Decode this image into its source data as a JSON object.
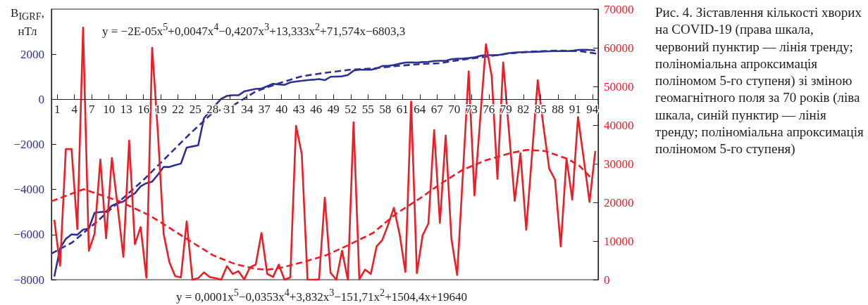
{
  "chart_data": {
    "type": "line",
    "title": "Рис. 4. Зіставлення кількості хворих на COVID-19 (права шкала, червоний пунктир — лінія тренду; поліноміальна апроксимація поліномом 5-го ступеня) зі зміною геомагнітного поля за 70 років (ліва шкала, синій пунктир — лінія тренду; поліноміальна апроксимація поліномом 5-го ступеня)",
    "ylabel": "B$_{IGRF}$, нТл",
    "annotations": [
      "y = −2E-05x$^{5}$+0,0047x$^{4}$−0,4207x$^{3}$+13,333x$^{2}$+71,574x−6803,3",
      "y = 0,0001x$^{5}$−0,0353x$^{4}$+3,832x$^{3}$−151,71x$^{2}$+1504,4x+19640"
    ],
    "x": [
      0.5,
      1.5,
      2.5,
      3.5,
      4.5,
      5.5,
      6.5,
      7.5,
      8.5,
      9.5,
      10.5,
      11.5,
      12.5,
      13.5,
      14.5,
      15.5,
      16.5,
      17.5,
      18.5,
      19.5,
      20.5,
      21.5,
      22.5,
      23.5,
      24.5,
      25.5,
      26.5,
      27.5,
      28.5,
      29.5,
      30.5,
      31.5,
      32.5,
      33.5,
      34.5,
      35.5,
      36.5,
      37.5,
      38.5,
      39.5,
      40.5,
      41.5,
      42.5,
      43.5,
      44.5,
      45.5,
      46.5,
      47.5,
      48.5,
      49.5,
      50.5,
      51.5,
      52.5,
      53.5,
      54.5,
      55.5,
      56.5,
      57.5,
      58.5,
      59.5,
      60.5,
      61.5,
      62.5,
      63.5,
      64.5,
      65.5,
      66.5,
      67.5,
      68.5,
      69.5,
      70.5,
      71.5,
      72.5,
      73.5,
      74.5,
      75.5,
      76.5,
      77.5,
      78.5,
      79.5,
      80.5,
      81.5,
      82.5,
      83.5,
      84.5,
      85.5,
      86.5,
      87.5,
      88.5,
      89.5,
      90.5,
      91.5,
      92.5,
      93.5,
      94.5
    ],
    "xlim": [
      0,
      95
    ],
    "xticks": [
      1,
      4,
      7,
      10,
      13,
      16,
      19,
      22,
      25,
      28,
      31,
      34,
      37,
      40,
      43,
      46,
      49,
      52,
      55,
      58,
      61,
      64,
      67,
      70,
      73,
      76,
      79,
      82,
      85,
      88,
      91,
      94
    ],
    "ylim": [
      -8000,
      4000
    ],
    "yticks": [
      {
        "value": -8000,
        "label": "−8000"
      },
      {
        "value": -6000,
        "label": "−6000"
      },
      {
        "value": -4000,
        "label": "−4000"
      },
      {
        "value": -2000,
        "label": "−2000"
      },
      0,
      2000
    ],
    "y2lim": [
      0,
      70000
    ],
    "y2ticks": [
      0,
      10000,
      20000,
      30000,
      40000,
      50000,
      60000,
      70000
    ],
    "marker": "none",
    "grid": false,
    "series": [
      {
        "color": "#2e3192",
        "line_style": "solid",
        "values": [
          -7860,
          -6610,
          -6190,
          -5990,
          -6010,
          -5780,
          -5730,
          -5030,
          -5000,
          -4980,
          -4720,
          -4610,
          -4530,
          -4320,
          -4170,
          -3860,
          -3720,
          -3650,
          -3340,
          -3000,
          -3000,
          -2920,
          -2850,
          -2140,
          -2090,
          -2040,
          -840,
          -530,
          -250,
          20,
          150,
          180,
          180,
          350,
          410,
          460,
          480,
          580,
          690,
          660,
          640,
          750,
          790,
          820,
          850,
          870,
          900,
          850,
          1000,
          1010,
          1020,
          1080,
          1270,
          1310,
          1310,
          1310,
          1370,
          1480,
          1480,
          1520,
          1580,
          1630,
          1640,
          1630,
          1650,
          1660,
          1700,
          1710,
          1710,
          1780,
          1800,
          1810,
          1830,
          1860,
          1930,
          1960,
          1960,
          1960,
          2000,
          2050,
          2070,
          2090,
          2100,
          2100,
          2110,
          2120,
          2130,
          2140,
          2140,
          2140,
          2150,
          2190,
          2200,
          2190,
          2170
        ]
      },
      {
        "color": "#2e3192",
        "line_style": "dashed",
        "x": [
          0,
          3.6,
          7.7,
          11.8,
          15.9,
          20,
          24.1,
          28.1,
          31.4,
          35.5,
          39.6,
          43.6,
          47.7,
          51.8,
          55.9,
          60,
          64.5,
          67.3,
          71.4,
          75.5,
          79.6,
          83.6,
          87.7,
          91.8,
          94.9
        ],
        "values": [
          -6840,
          -6350,
          -5470,
          -4530,
          -3600,
          -2560,
          -1520,
          -580,
          -300,
          350,
          720,
          1030,
          1180,
          1310,
          1370,
          1480,
          1570,
          1600,
          1760,
          1890,
          2040,
          2120,
          2160,
          2140,
          2020
        ]
      },
      {
        "color": "#ee1c25",
        "line_style": "solid",
        "axis": "y2",
        "values": [
          15500,
          3600,
          33800,
          33800,
          13100,
          65200,
          7500,
          11900,
          31100,
          10700,
          31500,
          19000,
          5900,
          36000,
          9200,
          13600,
          500,
          60000,
          38000,
          11800,
          4500,
          900,
          600,
          15100,
          0,
          400,
          1900,
          700,
          400,
          0,
          3500,
          1500,
          2200,
          100,
          3200,
          3900,
          12100,
          1500,
          700,
          3900,
          0,
          600,
          39800,
          32500,
          0,
          0,
          100,
          21200,
          1800,
          0,
          7500,
          0,
          40700,
          100,
          2600,
          1500,
          8600,
          10300,
          14200,
          18600,
          11800,
          2000,
          46100,
          1700,
          11500,
          14500,
          38700,
          14700,
          37300,
          10600,
          1200,
          27500,
          53900,
          21800,
          41500,
          60900,
          52700,
          26100,
          56200,
          38400,
          20400,
          32700,
          12900,
          32300,
          51600,
          39600,
          28700,
          25900,
          8600,
          31300,
          20700,
          42100,
          31200,
          20100,
          33300
        ]
      },
      {
        "color": "#ee1c25",
        "line_style": "dashed",
        "axis": "y2",
        "x": [
          0,
          5.6,
          11.8,
          17.1,
          20,
          24.1,
          28.1,
          32,
          35.5,
          37.5,
          39.6,
          43.6,
          47.7,
          51.8,
          55.9,
          60,
          64,
          67.3,
          71.4,
          75.5,
          79.6,
          82.6,
          85.7,
          89.8,
          91.8,
          93.9
        ],
        "values": [
          20300,
          23400,
          20300,
          16600,
          13900,
          10000,
          6300,
          4000,
          2800,
          2600,
          3000,
          4500,
          6300,
          9100,
          12100,
          17200,
          21000,
          24500,
          28400,
          30900,
          32700,
          33600,
          33300,
          31200,
          29400,
          26100
        ]
      }
    ]
  }
}
